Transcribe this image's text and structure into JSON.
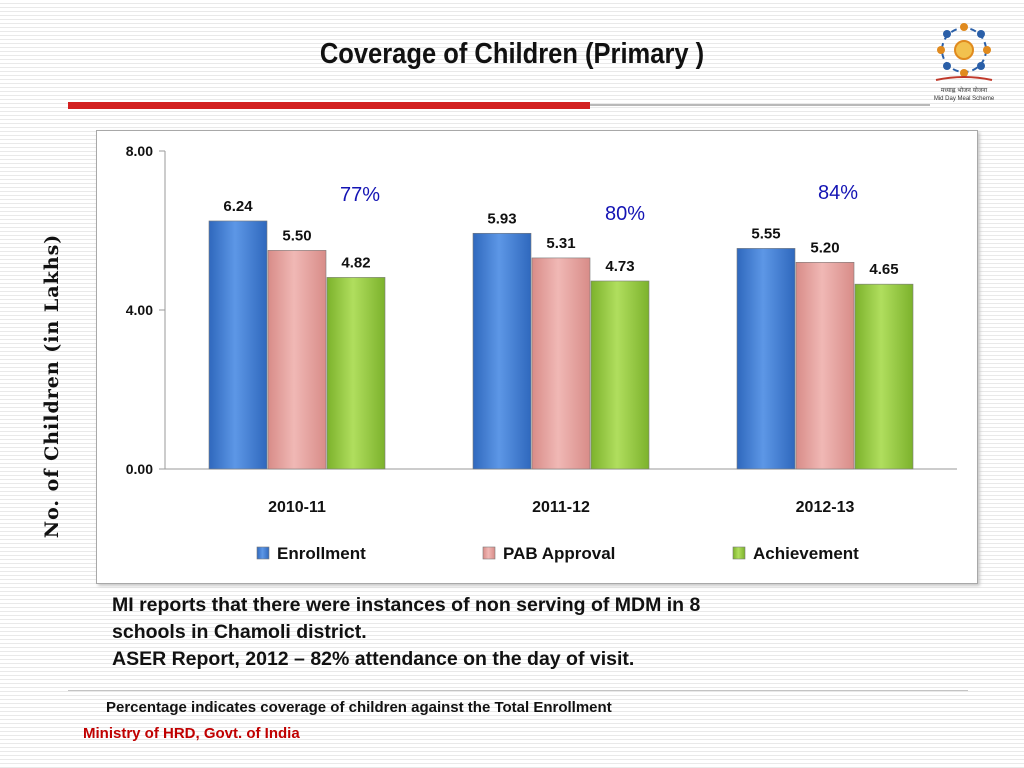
{
  "slide": {
    "title": "Coverage of Children (Primary )",
    "logo_text": "मध्याह्न भोजन योजना",
    "logo_caption": "Mid Day Meal Scheme",
    "info_lines": [
      "MI reports that there were instances of non serving of MDM in 8",
      "schools in Chamoli district.",
      "ASER Report, 2012 – 82% attendance on the day of visit."
    ],
    "footnote": "Percentage indicates coverage of children against the Total Enrollment",
    "ministry": "Ministry of HRD, Govt. of India",
    "colors": {
      "title_rule": "#d32020",
      "ministry_text": "#c00000"
    }
  },
  "chart_data": {
    "type": "bar",
    "title": "",
    "xlabel": "",
    "ylabel": "No. of Children (in Lakhs)",
    "ylim": [
      0,
      8
    ],
    "y_ticks": [
      "0.00",
      "4.00",
      "8.00"
    ],
    "categories": [
      "2010-11",
      "2011-12",
      "2012-13"
    ],
    "series": [
      {
        "name": "Enrollment",
        "color": "#4a86d8",
        "values": [
          6.24,
          5.93,
          5.55
        ],
        "labels": [
          "6.24",
          "5.93",
          "5.55"
        ]
      },
      {
        "name": "PAB Approval",
        "color": "#e4a3a0",
        "values": [
          5.5,
          5.31,
          5.2
        ],
        "labels": [
          "5.50",
          "5.31",
          "5.20"
        ]
      },
      {
        "name": "Achievement",
        "color": "#9bcf44",
        "values": [
          4.82,
          4.73,
          4.65
        ],
        "labels": [
          "4.82",
          "4.73",
          "4.65"
        ]
      }
    ],
    "annotations": [
      "77%",
      "80%",
      "84%"
    ],
    "annotation_color": "#1414b4",
    "grid": false,
    "legend_position": "bottom"
  }
}
